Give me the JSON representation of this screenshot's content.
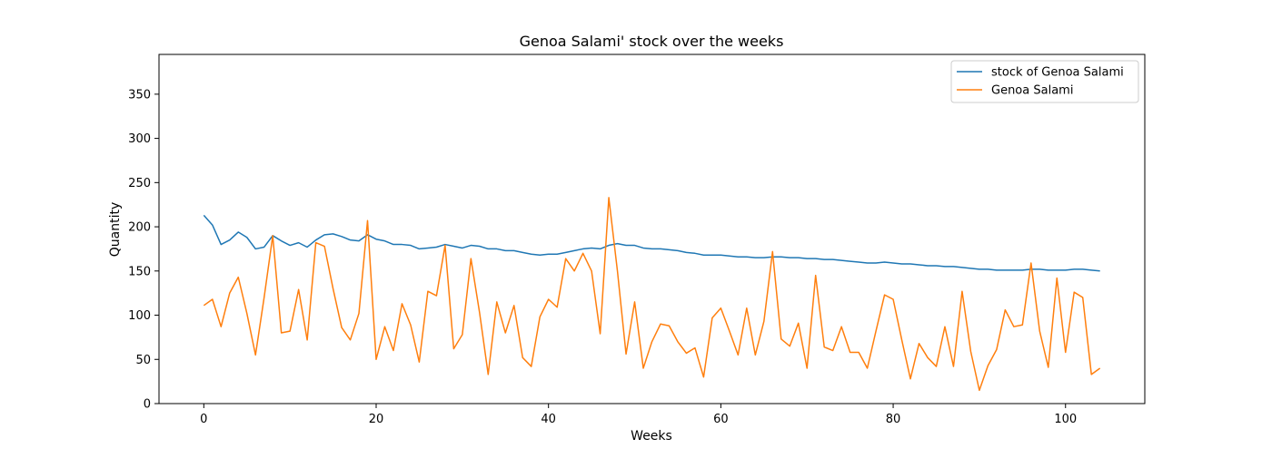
{
  "chart_data": {
    "type": "line",
    "title": "Genoa Salami' stock over the weeks",
    "xlabel": "Weeks",
    "ylabel": "Quantity",
    "xlim": [
      -5.2,
      109.2
    ],
    "ylim": [
      0,
      395
    ],
    "xticks": [
      0,
      20,
      40,
      60,
      80,
      100
    ],
    "yticks": [
      0,
      50,
      100,
      150,
      200,
      250,
      300,
      350
    ],
    "grid": false,
    "legend_position": "top-right",
    "series": [
      {
        "name": "stock of Genoa Salami",
        "color": "#1f77b4",
        "values": [
          213,
          202,
          180,
          185,
          194,
          188,
          175,
          177,
          190,
          184,
          179,
          182,
          177,
          185,
          191,
          192,
          189,
          185,
          184,
          191,
          186,
          184,
          180,
          180,
          179,
          175,
          176,
          177,
          180,
          178,
          176,
          179,
          178,
          175,
          175,
          173,
          173,
          171,
          169,
          168,
          169,
          169,
          171,
          173,
          175,
          176,
          175,
          179,
          181,
          179,
          179,
          176,
          175,
          175,
          174,
          173,
          171,
          170,
          168,
          168,
          168,
          167,
          166,
          166,
          165,
          165,
          166,
          166,
          165,
          165,
          164,
          164,
          163,
          163,
          162,
          161,
          160,
          159,
          159,
          160,
          159,
          158,
          158,
          157,
          156,
          156,
          155,
          155,
          154,
          153,
          152,
          152,
          151,
          151,
          151,
          151,
          152,
          152,
          151,
          151,
          151,
          152,
          152,
          151,
          150
        ]
      },
      {
        "name": "Genoa Salami",
        "color": "#ff7f0e",
        "values": [
          111,
          118,
          87,
          125,
          143,
          102,
          55,
          120,
          190,
          80,
          82,
          129,
          72,
          182,
          178,
          130,
          86,
          72,
          102,
          207,
          50,
          87,
          60,
          113,
          89,
          47,
          127,
          122,
          179,
          62,
          78,
          164,
          103,
          33,
          115,
          80,
          111,
          52,
          42,
          98,
          118,
          109,
          164,
          150,
          170,
          150,
          79,
          233,
          150,
          56,
          115,
          40,
          70,
          90,
          88,
          70,
          57,
          63,
          30,
          97,
          108,
          82,
          55,
          108,
          55,
          93,
          172,
          73,
          65,
          91,
          40,
          145,
          64,
          60,
          87,
          58,
          58,
          40,
          82,
          123,
          118,
          72,
          28,
          68,
          52,
          42,
          87,
          42,
          127,
          59,
          15,
          43,
          61,
          106,
          87,
          89,
          159,
          82,
          41,
          142,
          58,
          126,
          120,
          33,
          40
        ]
      }
    ]
  }
}
